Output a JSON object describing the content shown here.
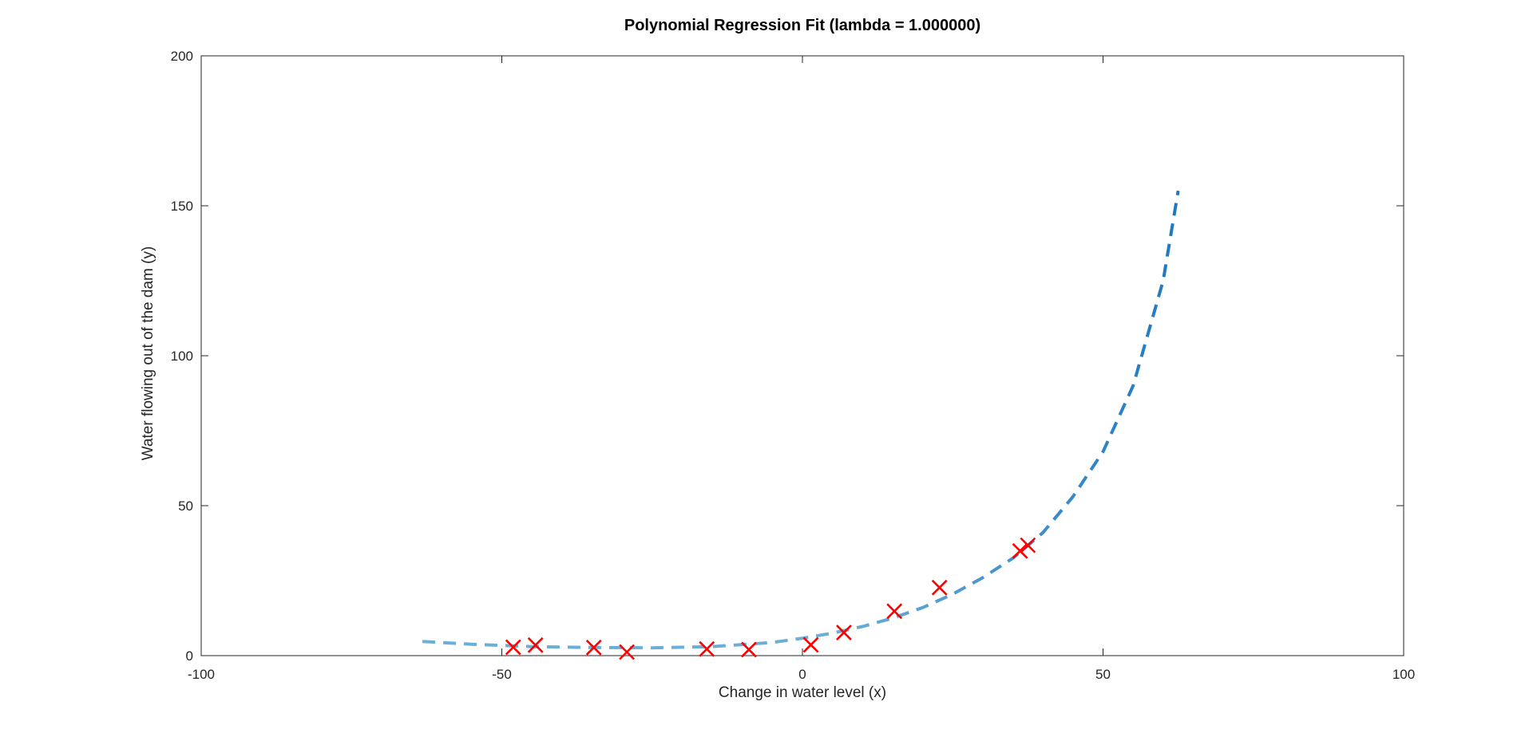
{
  "chart_data": {
    "type": "scatter",
    "title": "Polynomial Regression Fit (lambda = 1.000000)",
    "xlabel": "Change in water level (x)",
    "ylabel": "Water flowing out of the dam (y)",
    "xlim": [
      -100,
      100
    ],
    "ylim": [
      0,
      200
    ],
    "xticks": [
      -100,
      -50,
      0,
      50,
      100
    ],
    "yticks": [
      0,
      50,
      100,
      150,
      200
    ],
    "xtick_labels": [
      "-100",
      "-50",
      "0",
      "50",
      "100"
    ],
    "ytick_labels": [
      "0",
      "50",
      "100",
      "150",
      "200"
    ],
    "grid": false,
    "legend": "none",
    "series": [
      {
        "kind": "scatter",
        "marker": "x",
        "color": "#ff0000",
        "points": [
          {
            "x": -48.1,
            "y": 2.8
          },
          {
            "x": -44.4,
            "y": 3.5
          },
          {
            "x": -34.7,
            "y": 2.7
          },
          {
            "x": -29.2,
            "y": 1.2
          },
          {
            "x": -15.9,
            "y": 2.2
          },
          {
            "x": -8.9,
            "y": 2.0
          },
          {
            "x": 1.4,
            "y": 3.6
          },
          {
            "x": 6.9,
            "y": 7.7
          },
          {
            "x": 15.3,
            "y": 14.8
          },
          {
            "x": 22.8,
            "y": 22.7
          },
          {
            "x": 36.2,
            "y": 34.9
          },
          {
            "x": 37.5,
            "y": 36.8
          }
        ]
      },
      {
        "kind": "line",
        "style": "dashed",
        "color_start": "#6baed6",
        "color_end": "#1f78c1",
        "points": [
          {
            "x": -63.2,
            "y": 4.7
          },
          {
            "x": -55,
            "y": 3.8
          },
          {
            "x": -45,
            "y": 3.0
          },
          {
            "x": -35,
            "y": 2.7
          },
          {
            "x": -25,
            "y": 2.6
          },
          {
            "x": -15,
            "y": 3.0
          },
          {
            "x": -5,
            "y": 4.4
          },
          {
            "x": 0,
            "y": 5.8
          },
          {
            "x": 5,
            "y": 7.5
          },
          {
            "x": 10,
            "y": 9.7
          },
          {
            "x": 15,
            "y": 12.5
          },
          {
            "x": 20,
            "y": 16.0
          },
          {
            "x": 25,
            "y": 20.5
          },
          {
            "x": 30,
            "y": 26.0
          },
          {
            "x": 35,
            "y": 32.5
          },
          {
            "x": 40,
            "y": 41.0
          },
          {
            "x": 45,
            "y": 53.0
          },
          {
            "x": 50,
            "y": 68.0
          },
          {
            "x": 55,
            "y": 90.0
          },
          {
            "x": 60,
            "y": 125.0
          },
          {
            "x": 62.5,
            "y": 155.0
          }
        ]
      }
    ]
  }
}
